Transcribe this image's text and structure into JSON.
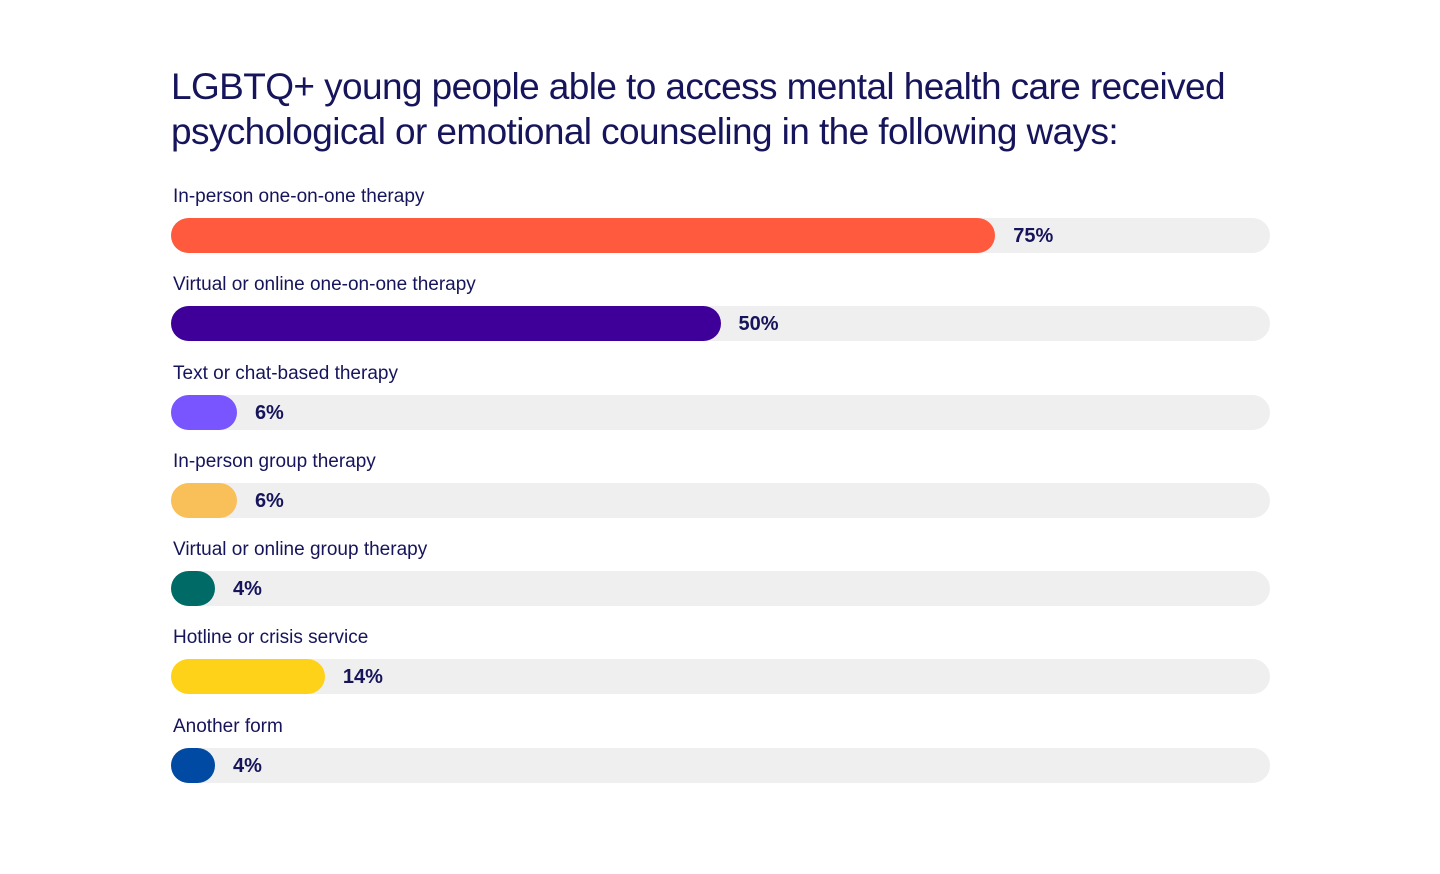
{
  "chart_data": {
    "type": "bar",
    "orientation": "horizontal",
    "title": "LGBTQ+ young people able to access mental health care received psychological or emotional counseling in the following ways:",
    "categories": [
      "In-person one-on-one therapy",
      "Virtual or online one-on-one therapy",
      "Text or chat-based therapy",
      "In-person group therapy",
      "Virtual or online group therapy",
      "Hotline or crisis service",
      "Another form"
    ],
    "values": [
      75,
      50,
      6,
      6,
      4,
      14,
      4
    ],
    "value_labels": [
      "75%",
      "50%",
      "6%",
      "6%",
      "4%",
      "14%",
      "4%"
    ],
    "unit": "%",
    "xlim": [
      0,
      100
    ],
    "colors": [
      "#ff5a3d",
      "#3f0099",
      "#7855ff",
      "#f9c05a",
      "#006b66",
      "#ffd21a",
      "#004aa3"
    ],
    "track_color": "#efefef",
    "grid": false,
    "legend": "none"
  }
}
